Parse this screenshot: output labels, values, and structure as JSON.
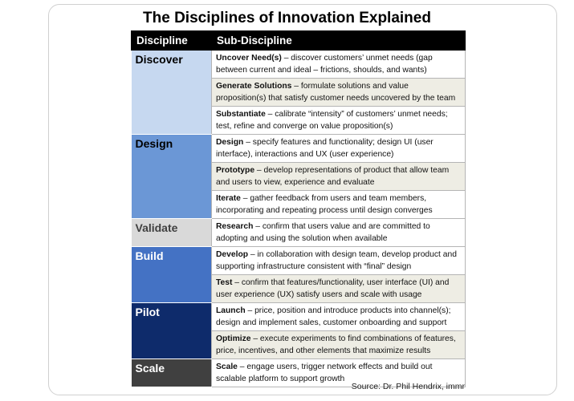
{
  "title": "The Disciplines of Innovation Explained",
  "header": {
    "col1": "Discipline",
    "col2": "Sub-Discipline"
  },
  "rows": [
    {
      "name": "Discover",
      "bg": "#c6d8f0",
      "fg": "#000000",
      "subs": [
        {
          "term": "Uncover Need(s)",
          "desc": " – discover customers’ unmet needs  (gap between current and ideal – frictions, shoulds, and wants)"
        },
        {
          "term": "Generate Solutions",
          "desc": " – formulate solutions and value proposition(s) that satisfy customer needs uncovered by the team"
        },
        {
          "term": "Substantiate",
          "desc": " – calibrate “intensity” of customers’ unmet needs; test, refine and converge on value proposition(s)"
        }
      ]
    },
    {
      "name": "Design",
      "bg": "#6b97d6",
      "fg": "#000000",
      "subs": [
        {
          "term": "Design",
          "desc": " – specify features  and functionality; design UI (user interface), interactions and UX (user experience)"
        },
        {
          "term": "Prototype",
          "desc": " – develop representations of product that allow team and users to view, experience  and evaluate"
        },
        {
          "term": "Iterate",
          "desc": " – gather feedback from users and team members, incorporating and repeating process until design converges"
        }
      ]
    },
    {
      "name": "Validate",
      "bg": "#d9d9d9",
      "fg": "#404040",
      "subs": [
        {
          "term": "Research",
          "desc": " – confirm that users value and are committed to adopting and using the solution when available"
        }
      ]
    },
    {
      "name": "Build",
      "bg": "#4472c4",
      "fg": "#ffffff",
      "subs": [
        {
          "term": "Develop",
          "desc": " – in collaboration with design team, develop product and supporting infrastructure consistent with “final” design"
        },
        {
          "term": "Test",
          "desc": " – confirm that features/functionality,  user interface (UI) and user experience (UX) satisfy users and scale with usage"
        }
      ]
    },
    {
      "name": "Pilot",
      "bg": "#0e2b6b",
      "fg": "#ffffff",
      "subs": [
        {
          "term": "Launch",
          "desc": " – price, position and introduce products into channel(s); design and implement sales, customer onboarding and support"
        },
        {
          "term": "Optimize",
          "desc": " – execute experiments to find combinations of features, price, incentives, and other elements that maximize results"
        }
      ]
    },
    {
      "name": "Scale",
      "bg": "#404040",
      "fg": "#ffffff",
      "subs": [
        {
          "term": "Scale",
          "desc": " – engage users, trigger network effects  and build out scalable platform to support growth"
        }
      ]
    }
  ],
  "source": "Source: Dr. Phil Hendrix, immr"
}
